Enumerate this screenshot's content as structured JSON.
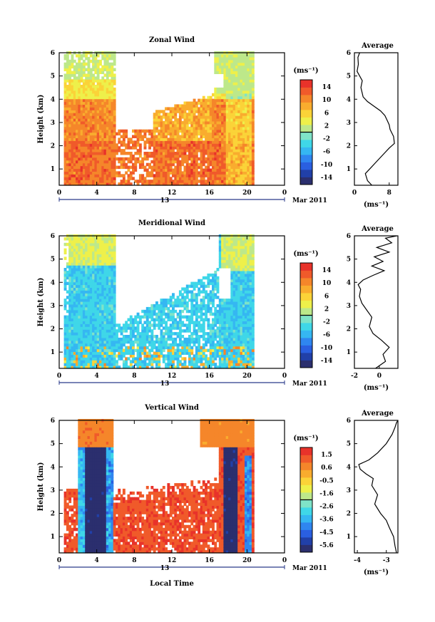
{
  "page": {
    "xlabel_bottom": "Local Time",
    "date_label": "Mar 2011",
    "day_label": "13"
  },
  "chart_data": [
    {
      "type": "heatmap",
      "title": "Zonal Wind",
      "ylabel": "Height (km)",
      "xlim": [
        0,
        24
      ],
      "ylim": [
        0.3,
        6
      ],
      "x_ticks": [
        "0",
        "4",
        "8",
        "12",
        "16",
        "20",
        "0"
      ],
      "y_ticks": [
        "1",
        "2",
        "3",
        "4",
        "5",
        "6"
      ],
      "colorbar": {
        "unit": "(ms⁻¹)",
        "ticks": [
          "14",
          "10",
          "6",
          "2",
          "-2",
          "-6",
          "-10",
          "-14"
        ],
        "range": [
          -16,
          16
        ]
      },
      "colors": [
        "#2b2f6e",
        "#2140a8",
        "#2a5fe0",
        "#2f86f0",
        "#35b7f2",
        "#3fd7e8",
        "#7fe3c8",
        "#bde88a",
        "#eef04a",
        "#fbd338",
        "#f9ac2e",
        "#f5862a",
        "#f05a2a",
        "#e8322a"
      ],
      "profile": {
        "title": "Average",
        "xlabel": "(ms⁻¹)",
        "x_ticks": [
          "0",
          "8"
        ],
        "xlim": [
          0,
          10
        ],
        "x": [
          4.0,
          3.0,
          2.5,
          3.5,
          5.0,
          6.5,
          8.0,
          9.2,
          9.0,
          8.2,
          8.0,
          7.5,
          7.0,
          6.0,
          4.5,
          3.0,
          2.0,
          1.5,
          1.8,
          1.2,
          0.6,
          0.9,
          0.8,
          1.2
        ],
        "y": [
          0.3,
          0.5,
          0.8,
          1.0,
          1.3,
          1.6,
          1.9,
          2.1,
          2.4,
          2.7,
          2.9,
          3.1,
          3.3,
          3.5,
          3.7,
          3.9,
          4.1,
          4.5,
          4.8,
          5.0,
          5.2,
          5.5,
          5.8,
          6.0
        ]
      }
    },
    {
      "type": "heatmap",
      "title": "Meridional Wind",
      "ylabel": "Height (km)",
      "xlim": [
        0,
        24
      ],
      "ylim": [
        0.3,
        6
      ],
      "x_ticks": [
        "0",
        "4",
        "8",
        "12",
        "16",
        "20",
        "0"
      ],
      "y_ticks": [
        "1",
        "2",
        "3",
        "4",
        "5",
        "6"
      ],
      "colorbar": {
        "unit": "(ms⁻¹)",
        "ticks": [
          "14",
          "10",
          "6",
          "2",
          "-2",
          "-6",
          "-10",
          "-14"
        ],
        "range": [
          -16,
          16
        ]
      },
      "colors": [
        "#2b2f6e",
        "#2140a8",
        "#2a5fe0",
        "#2f86f0",
        "#35b7f2",
        "#3fd7e8",
        "#7fe3c8",
        "#bde88a",
        "#eef04a",
        "#fbd338",
        "#f9ac2e",
        "#f5862a",
        "#f05a2a",
        "#e8322a"
      ],
      "profile": {
        "title": "Average",
        "xlabel": "(ms⁻¹)",
        "x_ticks": [
          "-2",
          "0"
        ],
        "xlim": [
          -2,
          1.5
        ],
        "x": [
          -0.3,
          0.5,
          0.3,
          0.8,
          0.2,
          -0.5,
          -0.8,
          -0.6,
          -1.0,
          -1.4,
          -1.6,
          -1.5,
          -1.7,
          -1.3,
          -0.5,
          0.4,
          -0.6,
          0.3,
          -0.4,
          0.8,
          -0.2,
          1.0,
          0.5,
          1.4
        ],
        "y": [
          0.3,
          0.6,
          0.9,
          1.2,
          1.5,
          1.8,
          2.1,
          2.5,
          2.8,
          3.1,
          3.4,
          3.7,
          3.9,
          4.1,
          4.3,
          4.5,
          4.7,
          4.9,
          5.1,
          5.3,
          5.5,
          5.7,
          5.9,
          6.0
        ]
      }
    },
    {
      "type": "heatmap",
      "title": "Vertical Wind",
      "ylabel": "Height (km)",
      "xlim": [
        0,
        24
      ],
      "ylim": [
        0.3,
        6
      ],
      "x_ticks": [
        "0",
        "4",
        "8",
        "12",
        "16",
        "20",
        "0"
      ],
      "y_ticks": [
        "1",
        "2",
        "3",
        "4",
        "5",
        "6"
      ],
      "colorbar": {
        "unit": "(ms⁻¹)",
        "ticks": [
          "1.5",
          "0.6",
          "-0.5",
          "-1.6",
          "-2.6",
          "-3.6",
          "-4.5",
          "-5.6"
        ],
        "range": [
          -6.2,
          2.0
        ]
      },
      "colors": [
        "#2b2f6e",
        "#2140a8",
        "#2a5fe0",
        "#2f86f0",
        "#35b7f2",
        "#3fd7e8",
        "#7fe3c8",
        "#bde88a",
        "#eef04a",
        "#fbd338",
        "#f9ac2e",
        "#f5862a",
        "#f05a2a",
        "#e8322a"
      ],
      "profile": {
        "title": "Average",
        "xlabel": "(ms⁻¹)",
        "x_ticks": [
          "-4",
          "-3"
        ],
        "xlim": [
          -4.1,
          -2.6
        ],
        "x": [
          -2.65,
          -2.7,
          -2.75,
          -2.9,
          -3.0,
          -3.2,
          -3.4,
          -3.3,
          -3.5,
          -3.45,
          -3.7,
          -3.9,
          -3.95,
          -3.6,
          -3.3,
          -3.0,
          -2.8,
          -2.7,
          -2.65,
          -2.6
        ],
        "y": [
          0.3,
          0.6,
          1.0,
          1.4,
          1.7,
          2.0,
          2.4,
          2.8,
          3.2,
          3.5,
          3.7,
          3.9,
          4.1,
          4.3,
          4.6,
          5.0,
          5.4,
          5.7,
          5.9,
          6.0
        ]
      }
    }
  ]
}
